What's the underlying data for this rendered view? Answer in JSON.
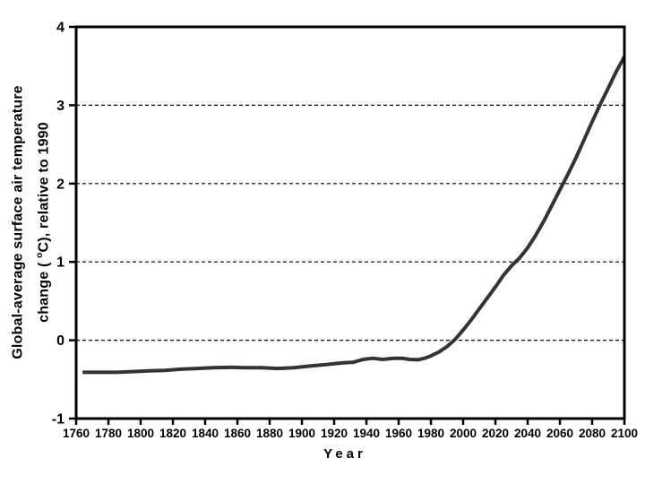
{
  "chart_data": {
    "type": "line",
    "title": "",
    "xlabel": "Year",
    "ylabel_line1": "Global-average surface air temperature",
    "ylabel_line2_prefix": "change ( ",
    "ylabel_degree_symbol": "o",
    "ylabel_line2_suffix": "C), relative to 1990",
    "xlim": [
      1760,
      2100
    ],
    "ylim": [
      -1,
      4
    ],
    "xticks": [
      1760,
      1780,
      1800,
      1820,
      1840,
      1860,
      1880,
      1900,
      1920,
      1940,
      1960,
      1980,
      2000,
      2020,
      2040,
      2060,
      2080,
      2100
    ],
    "yticks": [
      4,
      3,
      2,
      1,
      0,
      -1
    ],
    "gridlines_y": [
      0,
      1,
      2,
      3
    ],
    "grid_style": "dashed",
    "legend": "none",
    "line_color": "#333333",
    "axis_color": "#000000",
    "background_color": "#ffffff",
    "series": [
      {
        "name": "Global-average surface air temperature change relative to 1990",
        "points": [
          [
            1764,
            -0.41
          ],
          [
            1775,
            -0.41
          ],
          [
            1785,
            -0.41
          ],
          [
            1795,
            -0.4
          ],
          [
            1805,
            -0.39
          ],
          [
            1815,
            -0.385
          ],
          [
            1825,
            -0.37
          ],
          [
            1835,
            -0.36
          ],
          [
            1845,
            -0.35
          ],
          [
            1855,
            -0.345
          ],
          [
            1865,
            -0.35
          ],
          [
            1875,
            -0.35
          ],
          [
            1885,
            -0.36
          ],
          [
            1895,
            -0.35
          ],
          [
            1905,
            -0.33
          ],
          [
            1915,
            -0.31
          ],
          [
            1925,
            -0.29
          ],
          [
            1932,
            -0.28
          ],
          [
            1938,
            -0.245
          ],
          [
            1944,
            -0.23
          ],
          [
            1950,
            -0.245
          ],
          [
            1957,
            -0.23
          ],
          [
            1962,
            -0.23
          ],
          [
            1967,
            -0.245
          ],
          [
            1972,
            -0.25
          ],
          [
            1976,
            -0.23
          ],
          [
            1980,
            -0.2
          ],
          [
            1985,
            -0.15
          ],
          [
            1990,
            -0.08
          ],
          [
            1995,
            0.01
          ],
          [
            2000,
            0.13
          ],
          [
            2005,
            0.26
          ],
          [
            2010,
            0.4
          ],
          [
            2015,
            0.54
          ],
          [
            2020,
            0.68
          ],
          [
            2025,
            0.83
          ],
          [
            2030,
            0.95
          ],
          [
            2035,
            1.05
          ],
          [
            2040,
            1.18
          ],
          [
            2045,
            1.34
          ],
          [
            2050,
            1.52
          ],
          [
            2055,
            1.72
          ],
          [
            2060,
            1.92
          ],
          [
            2065,
            2.12
          ],
          [
            2070,
            2.33
          ],
          [
            2075,
            2.56
          ],
          [
            2080,
            2.79
          ],
          [
            2085,
            3.01
          ],
          [
            2090,
            3.22
          ],
          [
            2095,
            3.43
          ],
          [
            2100,
            3.62
          ]
        ]
      }
    ]
  }
}
